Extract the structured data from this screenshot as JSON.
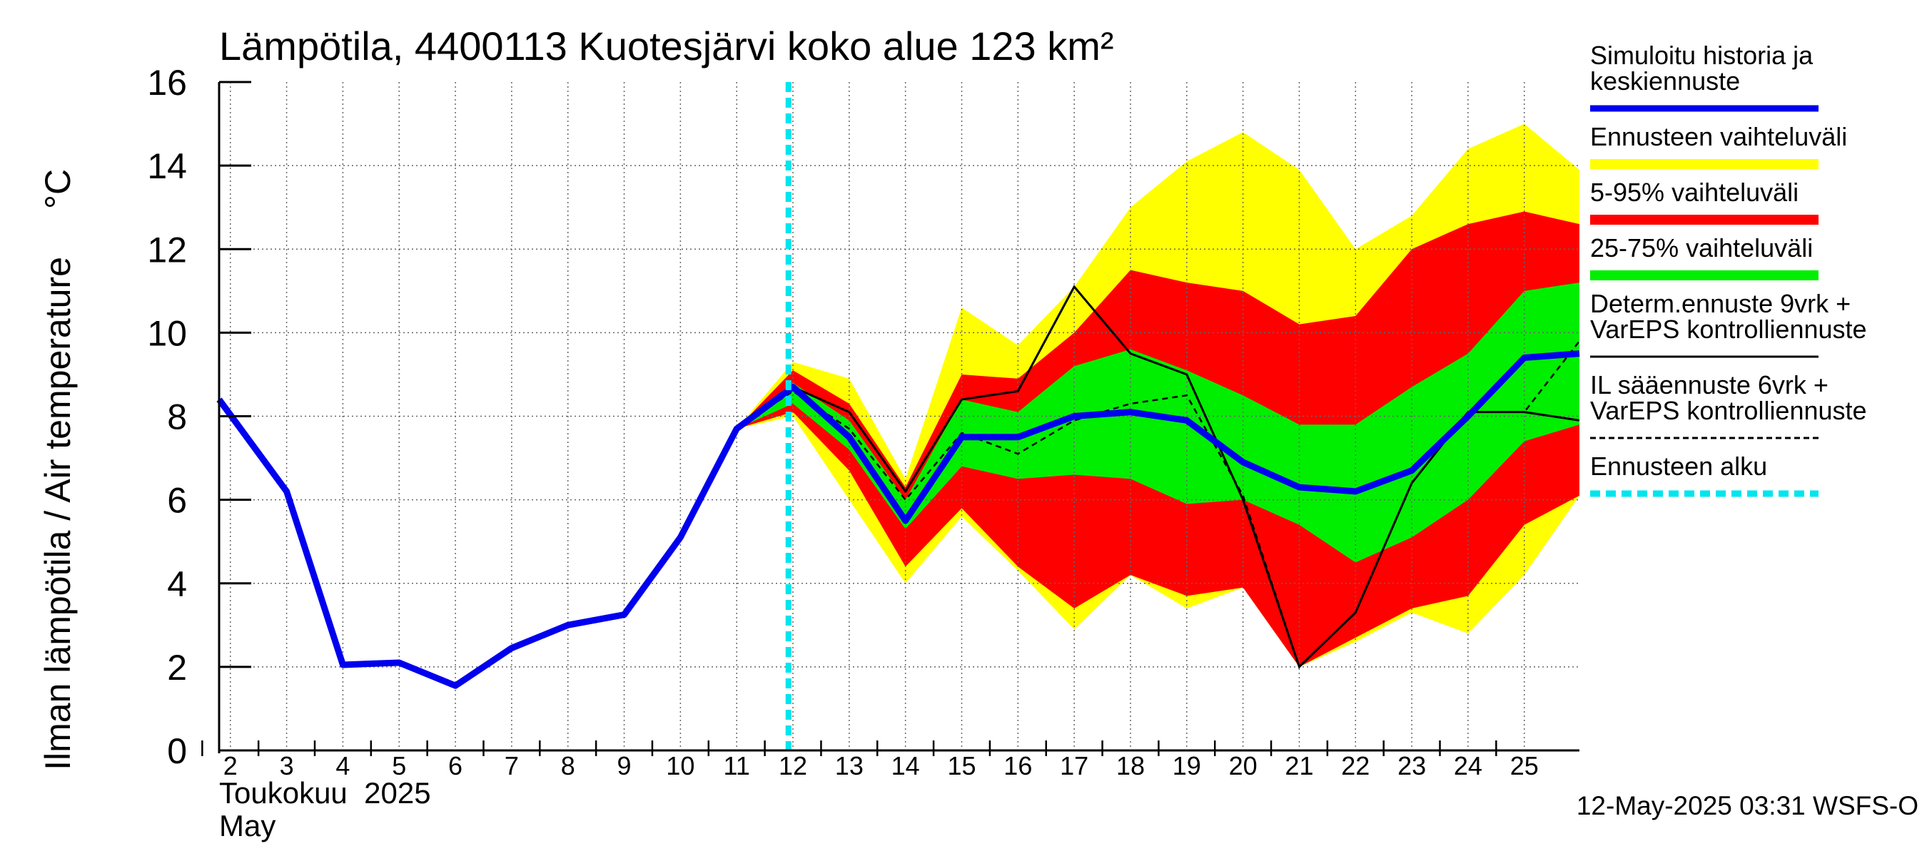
{
  "chart_data": {
    "type": "area",
    "title": "Lämpötila, 4400113 Kuotesjärvi koko alue 123 km²",
    "ylabel": "Ilman lämpötila / Air temperature",
    "yunit": "°C",
    "xlabel_line1": "Toukokuu  2025",
    "xlabel_line2": "May",
    "ylim": [
      0,
      16
    ],
    "yticks": [
      "0",
      "2",
      "4",
      "6",
      "8",
      "10",
      "12",
      "14",
      "16"
    ],
    "x_day_labels": [
      "2",
      "3",
      "4",
      "5",
      "6",
      "7",
      "8",
      "9",
      "10",
      "11",
      "12",
      "13",
      "14",
      "15",
      "16",
      "17",
      "18",
      "19",
      "20",
      "21",
      "22",
      "23",
      "24",
      "25"
    ],
    "x_range_days": [
      1.8,
      25.98
    ],
    "grid": true,
    "forecast_start_day": 11.92,
    "footer": "12-May-2025 03:31 WSFS-O",
    "legend_items": [
      {
        "key": "sim",
        "label_lines": [
          "Simuloitu historia ja",
          "keskiennuste"
        ],
        "color": "#0000ee",
        "style": "thick"
      },
      {
        "key": "range",
        "label_lines": [
          "Ennusteen vaihteluväli"
        ],
        "color": "#ffff00",
        "style": "band"
      },
      {
        "key": "p5_95",
        "label_lines": [
          "5-95% vaihteluväli"
        ],
        "color": "#ff0000",
        "style": "band"
      },
      {
        "key": "p25_75",
        "label_lines": [
          "25-75% vaihteluväli"
        ],
        "color": "#00ee00",
        "style": "band"
      },
      {
        "key": "determ",
        "label_lines": [
          "Determ.ennuste 9vrk +",
          "VarEPS kontrolliennuste"
        ],
        "color": "#000000",
        "style": "thin"
      },
      {
        "key": "il",
        "label_lines": [
          "IL sääennuste 6vrk  +",
          "  VarEPS kontrolliennuste"
        ],
        "color": "#000000",
        "style": "dashed"
      },
      {
        "key": "start",
        "label_lines": [
          "Ennusteen alku"
        ],
        "color": "#00e5ee",
        "style": "dotted"
      }
    ],
    "band_x": [
      11,
      12,
      13,
      14,
      15,
      16,
      17,
      18,
      19,
      20,
      21,
      22,
      23,
      24,
      25,
      25.98
    ],
    "range_upper": [
      7.7,
      9.3,
      8.9,
      6.5,
      10.6,
      9.7,
      11.1,
      13.0,
      14.1,
      14.8,
      13.9,
      12.0,
      12.8,
      14.4,
      15.0,
      13.9
    ],
    "range_lower": [
      7.7,
      8.0,
      6.0,
      4.0,
      5.6,
      4.3,
      2.9,
      4.2,
      3.4,
      3.9,
      2.0,
      2.6,
      3.3,
      2.8,
      4.2,
      6.1
    ],
    "p5_95_upper": [
      7.7,
      9.1,
      8.3,
      6.3,
      9.0,
      8.9,
      10.0,
      11.5,
      11.2,
      11.0,
      10.2,
      10.4,
      12.0,
      12.6,
      12.9,
      12.6
    ],
    "p5_95_lower": [
      7.7,
      8.1,
      6.7,
      4.4,
      5.8,
      4.4,
      3.4,
      4.2,
      3.7,
      3.9,
      2.0,
      2.7,
      3.4,
      3.7,
      5.4,
      6.1
    ],
    "p25_75_upper": [
      7.7,
      8.8,
      7.9,
      6.0,
      8.4,
      8.1,
      9.2,
      9.6,
      9.1,
      8.5,
      7.8,
      7.8,
      8.7,
      9.5,
      11.0,
      11.2
    ],
    "p25_75_lower": [
      7.7,
      8.3,
      7.2,
      5.3,
      6.8,
      6.5,
      6.6,
      6.5,
      5.9,
      6.0,
      5.4,
      4.5,
      5.1,
      6.0,
      7.4,
      7.8
    ],
    "sim_x": [
      1.8,
      3,
      4,
      5,
      6,
      7,
      8,
      9,
      10,
      11,
      12,
      13,
      14,
      15,
      16,
      17,
      18,
      19,
      20,
      21,
      22,
      23,
      24,
      25,
      25.98
    ],
    "sim_y": [
      8.4,
      6.2,
      2.05,
      2.1,
      1.55,
      2.45,
      3.0,
      3.25,
      5.1,
      7.7,
      8.7,
      7.5,
      5.5,
      7.5,
      7.5,
      8.0,
      8.1,
      7.9,
      6.9,
      6.3,
      6.2,
      6.7,
      8.0,
      9.4,
      9.5
    ],
    "determ_x": [
      11,
      12,
      13,
      14,
      15,
      16,
      17,
      18,
      19,
      20,
      21,
      22,
      23,
      24,
      25,
      25.98
    ],
    "determ_y": [
      7.7,
      8.7,
      8.1,
      6.2,
      8.4,
      8.6,
      11.1,
      9.5,
      9.0,
      6.0,
      2.0,
      3.3,
      6.4,
      8.1,
      8.1,
      7.9
    ],
    "il_x": [
      11,
      12,
      13,
      14,
      15,
      16,
      17,
      18,
      19,
      20,
      21,
      22,
      23,
      24,
      25,
      25.98
    ],
    "il_y": [
      7.7,
      8.6,
      7.7,
      6.0,
      7.6,
      7.1,
      7.9,
      8.3,
      8.5,
      6.1,
      2.0,
      3.3,
      6.4,
      8.1,
      8.1,
      9.8
    ]
  }
}
